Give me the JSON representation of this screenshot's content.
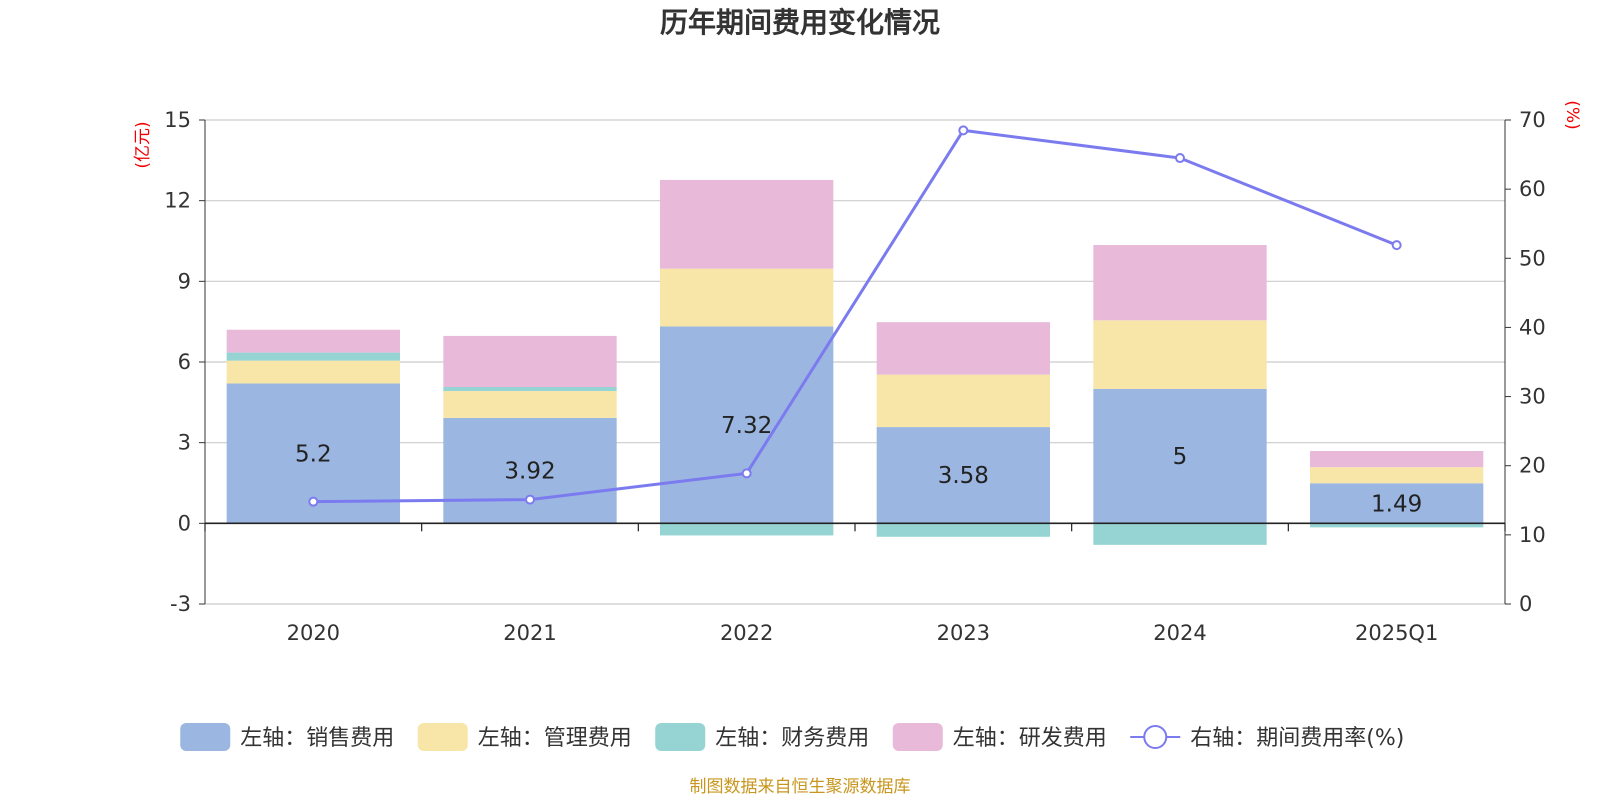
{
  "chart_data": {
    "type": "bar",
    "stacked": true,
    "title": "历年期间费用变化情况",
    "categories": [
      "2020",
      "2021",
      "2022",
      "2023",
      "2024",
      "2025Q1"
    ],
    "left_axis": {
      "unit": "(亿元)",
      "ylim": [
        -3,
        15
      ],
      "ticks": [
        15,
        12,
        9,
        6,
        3,
        0,
        -3
      ]
    },
    "right_axis": {
      "unit": "(%)",
      "ylim": [
        0,
        70
      ],
      "ticks": [
        70,
        60,
        50,
        40,
        30,
        20,
        10,
        0
      ]
    },
    "series": [
      {
        "name": "左轴：销售费用",
        "axis": "left",
        "color": "#9bb7e1",
        "values": [
          5.2,
          3.92,
          7.32,
          3.58,
          5.0,
          1.49
        ],
        "labels": [
          "5.2",
          "3.92",
          "7.32",
          "3.58",
          "5",
          "1.49"
        ]
      },
      {
        "name": "左轴：管理费用",
        "axis": "left",
        "color": "#f8e6a8",
        "values": [
          0.85,
          1.0,
          2.15,
          1.95,
          2.55,
          0.6
        ]
      },
      {
        "name": "左轴：财务费用",
        "axis": "left",
        "color": "#96d4d4",
        "values": [
          0.3,
          0.15,
          -0.45,
          -0.5,
          -0.8,
          -0.15
        ]
      },
      {
        "name": "左轴：研发费用",
        "axis": "left",
        "color": "#e8b9d8",
        "values": [
          0.85,
          1.9,
          3.3,
          1.95,
          2.8,
          0.6
        ]
      },
      {
        "name": "右轴：期间费用率(%)",
        "axis": "right",
        "type": "line",
        "color": "#7b7bef",
        "values": [
          14.8,
          15.1,
          18.9,
          68.5,
          64.5,
          51.9
        ]
      }
    ]
  },
  "source_text": "制图数据来自恒生聚源数据库"
}
